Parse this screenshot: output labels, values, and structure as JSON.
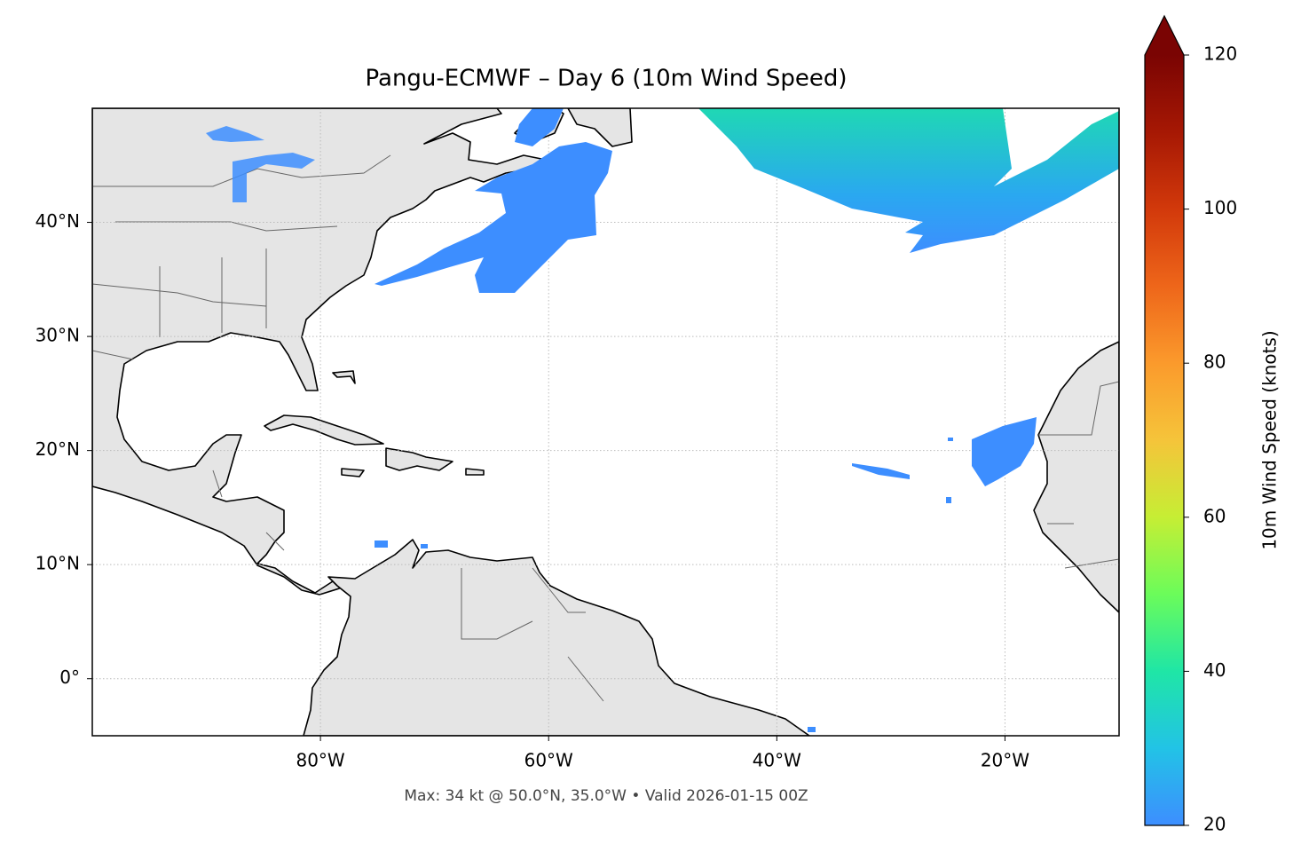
{
  "chart_data": {
    "type": "map",
    "title": "Pangu-ECMWF – Day 6 (10m Wind Speed)",
    "footer": "Max: 34 kt @ 50.0°N, 35.0°W • Valid 2026-01-15 00Z",
    "xlim": [
      -100,
      -10
    ],
    "ylim": [
      -5,
      50
    ],
    "xticks": [
      {
        "value": -80,
        "label": "80°W"
      },
      {
        "value": -60,
        "label": "60°W"
      },
      {
        "value": -40,
        "label": "40°W"
      },
      {
        "value": -20,
        "label": "20°W"
      }
    ],
    "yticks": [
      {
        "value": 0,
        "label": "0°"
      },
      {
        "value": 10,
        "label": "10°N"
      },
      {
        "value": 20,
        "label": "20°N"
      },
      {
        "value": 30,
        "label": "30°N"
      },
      {
        "value": 40,
        "label": "40°N"
      }
    ],
    "grid": true,
    "colorbar": {
      "label": "10m Wind Speed (knots)",
      "lim": [
        20,
        120
      ],
      "ticks": [
        20,
        40,
        60,
        80,
        100,
        120
      ],
      "extend": "max",
      "colors": [
        "#3d8eff",
        "#22c3e6",
        "#1fe6a6",
        "#6bfc5a",
        "#c6ee34",
        "#f5c43a",
        "#fb9a2c",
        "#ee661a",
        "#d2390b",
        "#a61804",
        "#7a0403"
      ]
    }
  }
}
